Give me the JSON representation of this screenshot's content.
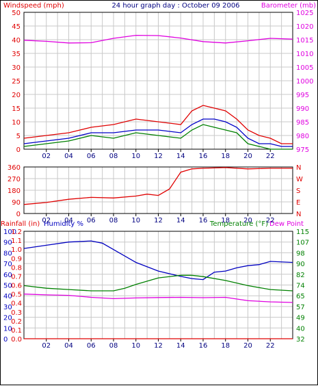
{
  "header": {
    "title": "24 hour graph day : October 09 2006",
    "left_label": "Windspeed (mph)",
    "right_label": "Barometer (mb)"
  },
  "panel3": {
    "left_label_1": "Rainfall (in)",
    "left_label_2": "Humidity %",
    "right_label_1": "Temperature (°F)",
    "right_label_2": "Dew Point"
  },
  "colors": {
    "wind_gust": "#e00000",
    "wind_avg": "#0000c8",
    "wind_speed": "#008000",
    "barometer": "#e000e0",
    "direction": "#e00000",
    "humidity": "#0000c0",
    "temperature": "#008000",
    "dewpoint": "#e000e0",
    "rainfall": "#e00000",
    "grid": "#c8c8c8"
  },
  "chart_data": [
    {
      "type": "line",
      "x_ticks": [
        "02",
        "04",
        "06",
        "08",
        "10",
        "12",
        "14",
        "16",
        "18",
        "20",
        "22"
      ],
      "y_left_ticks": [
        "0",
        "5",
        "10",
        "15",
        "20",
        "25",
        "30",
        "35",
        "40",
        "45",
        "50"
      ],
      "y_right_ticks": [
        "975",
        "980",
        "985",
        "990",
        "995",
        "1000",
        "1005",
        "1010",
        "1015",
        "1020",
        "1025"
      ],
      "ylim_left": [
        0,
        50
      ],
      "ylim_right": [
        975,
        1025
      ],
      "xlim": [
        0,
        24
      ],
      "grid": true,
      "series": [
        {
          "key": "barometer",
          "axis": "right",
          "x": [
            0,
            2,
            4,
            6,
            8,
            10,
            12,
            14,
            16,
            18,
            20,
            22,
            24
          ],
          "values": [
            1014.8,
            1014.4,
            1013.8,
            1013.9,
            1015.5,
            1016.6,
            1016.5,
            1015.6,
            1014.3,
            1013.8,
            1014.6,
            1015.5,
            1015.2
          ]
        },
        {
          "key": "wind_gust",
          "axis": "left",
          "x": [
            0,
            2,
            4,
            6,
            8,
            10,
            12,
            14,
            15,
            16,
            17,
            18,
            19,
            20,
            21,
            22,
            23,
            24
          ],
          "values": [
            4,
            5,
            6,
            8,
            9,
            11,
            10,
            9,
            14,
            16,
            15,
            14,
            11,
            7,
            5,
            4,
            2,
            2
          ]
        },
        {
          "key": "wind_avg",
          "axis": "left",
          "x": [
            0,
            2,
            4,
            6,
            8,
            10,
            12,
            14,
            15,
            16,
            17,
            18,
            19,
            20,
            21,
            22,
            23,
            24
          ],
          "values": [
            2,
            3,
            4,
            6,
            6,
            7,
            7,
            6,
            9,
            11,
            11,
            10,
            8,
            4,
            2,
            2,
            1,
            1
          ]
        },
        {
          "key": "wind_speed",
          "axis": "left",
          "x": [
            0,
            2,
            4,
            6,
            8,
            10,
            12,
            14,
            15,
            16,
            17,
            18,
            19,
            20,
            21,
            22,
            23,
            24
          ],
          "values": [
            1,
            2,
            3,
            5,
            4,
            6,
            5,
            4,
            7,
            9,
            8,
            7,
            6,
            2,
            1,
            0,
            0,
            0
          ]
        }
      ]
    },
    {
      "type": "line",
      "x_ticks": [
        "02",
        "04",
        "06",
        "08",
        "10",
        "12",
        "14",
        "16",
        "18",
        "20",
        "22"
      ],
      "y_left_ticks": [
        "0",
        "90",
        "180",
        "270",
        "360"
      ],
      "y_right_ticks": [
        "N",
        "E",
        "S",
        "W",
        "N"
      ],
      "ylim": [
        0,
        360
      ],
      "xlim": [
        0,
        24
      ],
      "grid": true,
      "series": [
        {
          "key": "direction",
          "x": [
            0,
            2,
            4,
            6,
            8,
            10,
            11,
            12,
            13,
            14,
            15,
            16,
            18,
            20,
            22,
            24
          ],
          "values": [
            70,
            85,
            110,
            125,
            120,
            135,
            150,
            140,
            190,
            320,
            345,
            350,
            355,
            345,
            350,
            350
          ]
        }
      ]
    },
    {
      "type": "line",
      "x_ticks": [
        "02",
        "04",
        "06",
        "08",
        "10",
        "12",
        "14",
        "16",
        "18",
        "20",
        "22"
      ],
      "y_humidity_ticks": [
        "0",
        "10",
        "20",
        "30",
        "40",
        "50",
        "60",
        "70",
        "80",
        "90",
        "100"
      ],
      "y_rain_ticks": [
        "0.0",
        "0.1",
        "0.2",
        "0.3",
        "0.4",
        "0.5",
        "0.6",
        "0.7",
        "0.8",
        "0.9",
        "1.0",
        "1.1",
        "1.2"
      ],
      "y_right_ticks": [
        "32",
        "40",
        "49",
        "57",
        "65",
        "74",
        "82",
        "90",
        "98",
        "107",
        "115"
      ],
      "ylim_humidity": [
        0,
        100
      ],
      "ylim_rain": [
        0,
        1.2
      ],
      "ylim_right": [
        32,
        115
      ],
      "xlim": [
        0,
        24
      ],
      "grid": true,
      "series": [
        {
          "key": "humidity",
          "axis": "humidity",
          "x": [
            0,
            2,
            4,
            6,
            7,
            8,
            10,
            12,
            14,
            15,
            16,
            17,
            18,
            19,
            20,
            21,
            22,
            24
          ],
          "values": [
            84,
            87,
            90,
            91,
            89,
            83,
            71,
            63,
            58,
            56,
            55,
            62,
            63,
            66,
            68,
            69,
            72,
            71
          ]
        },
        {
          "key": "temperature",
          "axis": "right",
          "x": [
            0,
            2,
            4,
            6,
            8,
            9,
            10,
            12,
            14,
            15,
            16,
            18,
            20,
            22,
            24
          ],
          "values": [
            73,
            71,
            70,
            69,
            69,
            71,
            74,
            79,
            81,
            81,
            80,
            77,
            73,
            70,
            69
          ]
        },
        {
          "key": "dewpoint",
          "axis": "right",
          "x": [
            0,
            2,
            4,
            6,
            8,
            10,
            12,
            14,
            16,
            18,
            20,
            22,
            24
          ],
          "values": [
            66.5,
            65.9,
            65.5,
            64.0,
            63.0,
            63.5,
            63.8,
            64.0,
            63.7,
            64.0,
            61.4,
            60.5,
            60.0
          ]
        },
        {
          "key": "rainfall",
          "axis": "rain",
          "x": [
            0,
            24
          ],
          "values": [
            0.0,
            0.0
          ]
        }
      ]
    }
  ]
}
